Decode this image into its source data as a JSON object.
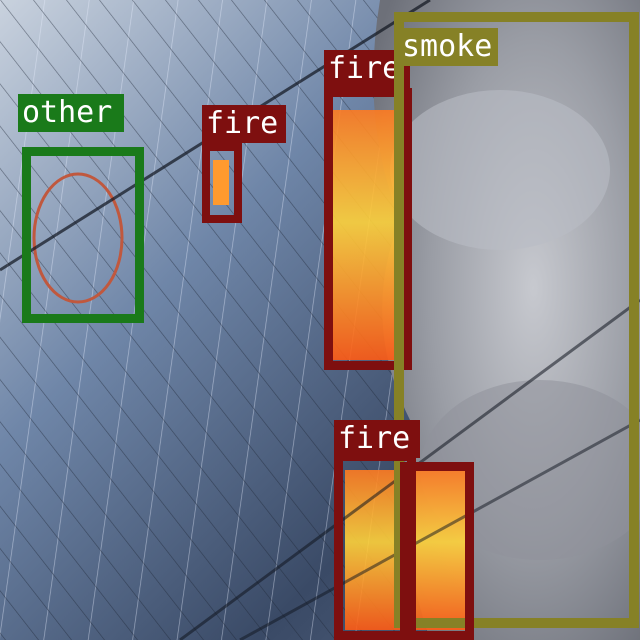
{
  "detections": [
    {
      "label": "other",
      "color": "#1a7a1a"
    },
    {
      "label": "fire",
      "color": "#7e0f0f"
    },
    {
      "label": "fire",
      "color": "#7e0f0f"
    },
    {
      "label": "smoke",
      "color": "#868126"
    },
    {
      "label": "fire",
      "color": "#7e0f0f"
    },
    {
      "label": "fire",
      "color": "#7e0f0f"
    }
  ]
}
